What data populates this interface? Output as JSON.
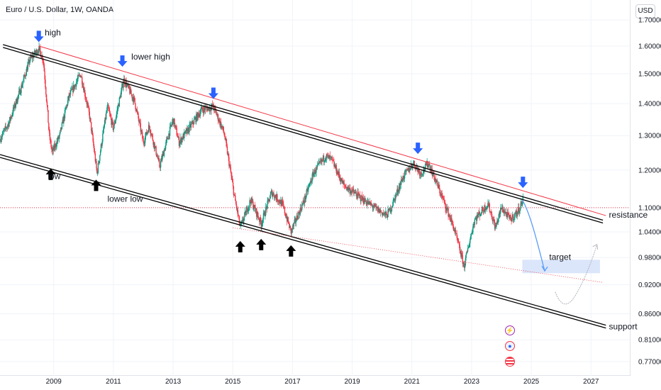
{
  "header": {
    "title": "Euro / U.S. Dollar, 1W, OANDA",
    "currency_button": "USD"
  },
  "chart_data": {
    "type": "candlestick",
    "symbol": "EURUSD",
    "interval": "1W",
    "y_scale": "log",
    "ylim": [
      0.745,
      1.78
    ],
    "xlim": [
      2007.2,
      2028.3
    ],
    "y_ticks": [
      "1.70000",
      "1.60000",
      "1.50000",
      "1.40000",
      "1.30000",
      "1.20000",
      "1.10000",
      "1.04000",
      "0.98000",
      "0.92000",
      "0.86000",
      "0.81000",
      "0.77000"
    ],
    "y_tick_values": [
      1.7,
      1.6,
      1.5,
      1.4,
      1.3,
      1.2,
      1.1,
      1.04,
      0.98,
      0.92,
      0.86,
      0.81,
      0.77
    ],
    "x_ticks": [
      "2009",
      "2011",
      "2013",
      "2015",
      "2017",
      "2019",
      "2021",
      "2023",
      "2025",
      "2027"
    ],
    "x_tick_values": [
      2009,
      2011,
      2013,
      2015,
      2017,
      2019,
      2021,
      2023,
      2025,
      2027
    ],
    "price_path": [
      [
        2007.2,
        1.29
      ],
      [
        2007.5,
        1.34
      ],
      [
        2007.9,
        1.45
      ],
      [
        2008.2,
        1.55
      ],
      [
        2008.5,
        1.59
      ],
      [
        2008.65,
        1.55
      ],
      [
        2008.85,
        1.3
      ],
      [
        2008.95,
        1.25
      ],
      [
        2009.2,
        1.3
      ],
      [
        2009.5,
        1.42
      ],
      [
        2009.9,
        1.5
      ],
      [
        2010.2,
        1.36
      ],
      [
        2010.45,
        1.19
      ],
      [
        2010.8,
        1.39
      ],
      [
        2011.0,
        1.32
      ],
      [
        2011.35,
        1.48
      ],
      [
        2011.7,
        1.41
      ],
      [
        2012.0,
        1.28
      ],
      [
        2012.2,
        1.33
      ],
      [
        2012.55,
        1.21
      ],
      [
        2013.0,
        1.35
      ],
      [
        2013.2,
        1.28
      ],
      [
        2013.6,
        1.33
      ],
      [
        2013.95,
        1.38
      ],
      [
        2014.35,
        1.39
      ],
      [
        2014.7,
        1.31
      ],
      [
        2015.05,
        1.13
      ],
      [
        2015.25,
        1.05
      ],
      [
        2015.6,
        1.12
      ],
      [
        2015.95,
        1.06
      ],
      [
        2016.3,
        1.14
      ],
      [
        2016.65,
        1.11
      ],
      [
        2016.95,
        1.04
      ],
      [
        2017.4,
        1.12
      ],
      [
        2017.7,
        1.19
      ],
      [
        2018.1,
        1.24
      ],
      [
        2018.3,
        1.23
      ],
      [
        2018.7,
        1.16
      ],
      [
        2019.2,
        1.13
      ],
      [
        2019.75,
        1.1
      ],
      [
        2020.15,
        1.08
      ],
      [
        2020.3,
        1.1
      ],
      [
        2020.7,
        1.18
      ],
      [
        2021.05,
        1.22
      ],
      [
        2021.3,
        1.19
      ],
      [
        2021.55,
        1.22
      ],
      [
        2022.0,
        1.13
      ],
      [
        2022.4,
        1.05
      ],
      [
        2022.75,
        0.96
      ],
      [
        2023.1,
        1.07
      ],
      [
        2023.55,
        1.11
      ],
      [
        2023.8,
        1.05
      ],
      [
        2024.0,
        1.1
      ],
      [
        2024.3,
        1.07
      ],
      [
        2024.55,
        1.09
      ],
      [
        2024.72,
        1.12
      ]
    ],
    "trend_lines": [
      {
        "name": "resistance",
        "color": "#000000",
        "points": [
          [
            2007.3,
            1.6
          ],
          [
            2027.4,
            1.065
          ]
        ]
      },
      {
        "name": "resistance-red",
        "color": "#f23645",
        "points": [
          [
            2008.5,
            1.6
          ],
          [
            2027.5,
            1.08
          ]
        ]
      },
      {
        "name": "support",
        "color": "#000000",
        "points": [
          [
            2007.2,
            1.24
          ],
          [
            2027.5,
            0.835
          ]
        ]
      },
      {
        "name": "support-red-dotted",
        "color": "#f23645",
        "points": [
          [
            2015.0,
            1.05
          ],
          [
            2027.4,
            0.925
          ]
        ]
      }
    ],
    "hline": {
      "value": 1.1,
      "color": "#f23645"
    },
    "target_zone": {
      "x": [
        2024.7,
        2027.3
      ],
      "y": [
        0.945,
        0.975
      ]
    },
    "projection": [
      [
        2024.7,
        1.12
      ],
      [
        2025.0,
        1.08
      ],
      [
        2025.25,
        1.0
      ],
      [
        2025.45,
        0.95
      ]
    ],
    "future_path": [
      [
        2026.1,
        0.875
      ],
      [
        2026.5,
        0.9
      ],
      [
        2026.9,
        0.955
      ],
      [
        2027.2,
        1.01
      ]
    ],
    "annotations": [
      {
        "text": "high",
        "x": 2008.7,
        "y": 1.64
      },
      {
        "text": "lower high",
        "x": 2011.6,
        "y": 1.55
      },
      {
        "text": "low",
        "x": 2008.8,
        "y": 1.175
      },
      {
        "text": "lower low",
        "x": 2010.8,
        "y": 1.115
      },
      {
        "text": "resistance",
        "x": 2027.6,
        "y": 1.075
      },
      {
        "text": "support",
        "x": 2027.6,
        "y": 0.83
      },
      {
        "text": "target",
        "x": 2025.6,
        "y": 0.975
      }
    ],
    "blue_arrows": [
      [
        2008.5,
        1.62
      ],
      [
        2011.3,
        1.53
      ],
      [
        2014.35,
        1.42
      ],
      [
        2021.2,
        1.25
      ],
      [
        2024.72,
        1.155
      ]
    ],
    "black_arrows": [
      [
        2008.9,
        1.2
      ],
      [
        2010.42,
        1.17
      ],
      [
        2015.25,
        1.015
      ],
      [
        2015.95,
        1.02
      ],
      [
        2016.95,
        1.005
      ]
    ],
    "colors": {
      "up": "#089981",
      "down": "#f23645",
      "arrow_blue": "#2962ff",
      "projection": "#5b9cf6",
      "zone": "#dbe6fb"
    }
  },
  "event_badges": [
    {
      "icon": "lightning-icon",
      "color": "#9c27b0"
    },
    {
      "icon": "globe-icon",
      "color": "#f23645"
    },
    {
      "icon": "us-flag-icon",
      "color": "#f23645"
    }
  ]
}
